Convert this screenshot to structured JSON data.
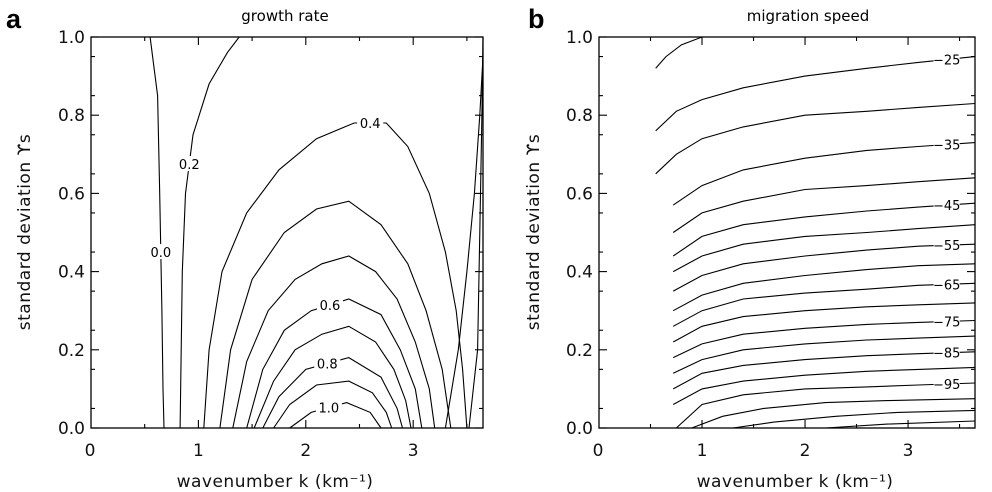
{
  "chart_data": [
    {
      "panel": "a",
      "type": "contour",
      "title": "growth rate",
      "xlabel": "wavenumber k (km⁻¹)",
      "ylabel": "standard deviation ϒs",
      "xlim": [
        0,
        3.65
      ],
      "ylim": [
        0,
        1.0
      ],
      "xticks": [
        0,
        1,
        2,
        3
      ],
      "yticks": [
        0.0,
        0.2,
        0.4,
        0.6,
        0.8,
        1.0
      ],
      "ytick_labels": [
        "0.0",
        "0.2",
        "0.4",
        "0.6",
        "0.8",
        "1.0"
      ],
      "series": [
        {
          "level": 0.0,
          "label": "0.0",
          "x": [
            0.55,
            0.62,
            0.64,
            0.66,
            0.67,
            0.68
          ],
          "y": [
            1.0,
            0.85,
            0.6,
            0.3,
            0.1,
            0.0
          ]
        },
        {
          "level": 0.0,
          "x": [
            3.52,
            3.6,
            3.62,
            3.64,
            3.65
          ],
          "y": [
            0.0,
            0.2,
            0.5,
            0.8,
            1.0
          ]
        },
        {
          "level": 0.2,
          "label": "0.2",
          "x": [
            0.83,
            0.84,
            0.85,
            0.88,
            0.95,
            1.1,
            1.27,
            1.38
          ],
          "y": [
            0.0,
            0.2,
            0.4,
            0.6,
            0.75,
            0.88,
            0.96,
            1.0
          ]
        },
        {
          "level": 0.2,
          "x": [
            3.3,
            3.42,
            3.5,
            3.57,
            3.62,
            3.65
          ],
          "y": [
            0.0,
            0.2,
            0.4,
            0.6,
            0.8,
            0.95
          ]
        },
        {
          "level": 0.4,
          "label": "0.4",
          "x": [
            1.05,
            1.1,
            1.22,
            1.45,
            1.75,
            2.1,
            2.45,
            2.75,
            2.95,
            3.15,
            3.3,
            3.4,
            3.46,
            3.5
          ],
          "y": [
            0.0,
            0.2,
            0.4,
            0.55,
            0.66,
            0.74,
            0.78,
            0.78,
            0.72,
            0.6,
            0.45,
            0.3,
            0.15,
            0.0
          ]
        },
        {
          "level": 0.48,
          "x": [
            1.2,
            1.3,
            1.5,
            1.8,
            2.1,
            2.4,
            2.7,
            2.95,
            3.12,
            3.27,
            3.35
          ],
          "y": [
            0.0,
            0.2,
            0.38,
            0.5,
            0.56,
            0.58,
            0.52,
            0.42,
            0.3,
            0.15,
            0.0
          ]
        },
        {
          "level": 0.56,
          "x": [
            1.32,
            1.45,
            1.65,
            1.9,
            2.15,
            2.4,
            2.65,
            2.85,
            3.02,
            3.15,
            3.2
          ],
          "y": [
            0.0,
            0.17,
            0.3,
            0.38,
            0.42,
            0.44,
            0.4,
            0.33,
            0.22,
            0.1,
            0.0
          ]
        },
        {
          "level": 0.6,
          "label": "0.6",
          "x": [
            1.45,
            1.6,
            1.8,
            2.05,
            2.4,
            2.7,
            2.88,
            3.02,
            3.08
          ],
          "y": [
            0.0,
            0.15,
            0.25,
            0.3,
            0.33,
            0.29,
            0.2,
            0.1,
            0.0
          ]
        },
        {
          "level": 0.7,
          "x": [
            1.52,
            1.7,
            1.9,
            2.15,
            2.4,
            2.65,
            2.82,
            2.93,
            2.98
          ],
          "y": [
            0.0,
            0.12,
            0.2,
            0.24,
            0.26,
            0.22,
            0.15,
            0.07,
            0.0
          ]
        },
        {
          "level": 0.8,
          "label": "0.8",
          "x": [
            1.6,
            1.75,
            2.0,
            2.4,
            2.7,
            2.85,
            2.9
          ],
          "y": [
            0.0,
            0.08,
            0.15,
            0.18,
            0.13,
            0.05,
            0.0
          ]
        },
        {
          "level": 0.9,
          "x": [
            1.7,
            1.85,
            2.1,
            2.4,
            2.62,
            2.75,
            2.8
          ],
          "y": [
            0.0,
            0.06,
            0.11,
            0.12,
            0.09,
            0.04,
            0.0
          ]
        },
        {
          "level": 1.0,
          "label": "1.0",
          "x": [
            1.85,
            2.05,
            2.38,
            2.6,
            2.7
          ],
          "y": [
            0.0,
            0.04,
            0.065,
            0.04,
            0.0
          ]
        }
      ]
    },
    {
      "panel": "b",
      "type": "contour",
      "title": "migration speed",
      "xlabel": "wavenumber k (km⁻¹)",
      "ylabel": "standard deviation ϒs",
      "xlim": [
        0,
        3.65
      ],
      "ylim": [
        0,
        1.0
      ],
      "xticks": [
        0,
        1,
        2,
        3
      ],
      "yticks": [
        0.0,
        0.2,
        0.4,
        0.6,
        0.8,
        1.0
      ],
      "ytick_labels": [
        "0.0",
        "0.2",
        "0.4",
        "0.6",
        "0.8",
        "1.0"
      ],
      "series": [
        {
          "level": -20,
          "x": [
            0.55,
            0.65,
            0.8,
            1.0,
            1.05
          ],
          "y": [
            0.92,
            0.95,
            0.98,
            1.0,
            1.0
          ]
        },
        {
          "level": -25,
          "label": "-25",
          "x": [
            0.55,
            0.75,
            1.0,
            1.4,
            2.0,
            2.6,
            3.1,
            3.65
          ],
          "y": [
            0.76,
            0.81,
            0.84,
            0.87,
            0.9,
            0.92,
            0.935,
            0.95
          ]
        },
        {
          "level": -30,
          "x": [
            0.55,
            0.75,
            1.0,
            1.4,
            2.0,
            2.6,
            3.1,
            3.65
          ],
          "y": [
            0.65,
            0.7,
            0.74,
            0.77,
            0.8,
            0.81,
            0.82,
            0.83
          ]
        },
        {
          "level": -35,
          "label": "-35",
          "x": [
            0.72,
            1.0,
            1.4,
            2.0,
            2.6,
            3.1,
            3.65
          ],
          "y": [
            0.57,
            0.62,
            0.66,
            0.69,
            0.71,
            0.72,
            0.73
          ]
        },
        {
          "level": -40,
          "x": [
            0.72,
            1.0,
            1.4,
            2.0,
            2.6,
            3.1,
            3.65
          ],
          "y": [
            0.5,
            0.55,
            0.58,
            0.61,
            0.62,
            0.63,
            0.64
          ]
        },
        {
          "level": -45,
          "label": "-45",
          "x": [
            0.72,
            1.0,
            1.4,
            2.0,
            2.6,
            3.1,
            3.65
          ],
          "y": [
            0.44,
            0.49,
            0.52,
            0.54,
            0.555,
            0.565,
            0.575
          ]
        },
        {
          "level": -50,
          "x": [
            0.72,
            1.0,
            1.4,
            2.0,
            2.6,
            3.1,
            3.65
          ],
          "y": [
            0.4,
            0.44,
            0.47,
            0.49,
            0.5,
            0.51,
            0.52
          ]
        },
        {
          "level": -55,
          "label": "-55",
          "x": [
            0.72,
            1.0,
            1.4,
            2.0,
            2.6,
            3.1,
            3.65
          ],
          "y": [
            0.35,
            0.39,
            0.42,
            0.44,
            0.455,
            0.465,
            0.47
          ]
        },
        {
          "level": -60,
          "x": [
            0.72,
            1.0,
            1.4,
            2.0,
            2.6,
            3.1,
            3.65
          ],
          "y": [
            0.3,
            0.34,
            0.37,
            0.39,
            0.405,
            0.415,
            0.42
          ]
        },
        {
          "level": -65,
          "label": "-65",
          "x": [
            0.72,
            1.0,
            1.4,
            2.0,
            2.6,
            3.1,
            3.65
          ],
          "y": [
            0.26,
            0.3,
            0.33,
            0.345,
            0.355,
            0.365,
            0.37
          ]
        },
        {
          "level": -70,
          "x": [
            0.72,
            1.0,
            1.4,
            2.0,
            2.6,
            3.1,
            3.65
          ],
          "y": [
            0.22,
            0.26,
            0.285,
            0.3,
            0.31,
            0.315,
            0.32
          ]
        },
        {
          "level": -75,
          "label": "-75",
          "x": [
            0.72,
            1.0,
            1.4,
            2.0,
            2.6,
            3.1,
            3.65
          ],
          "y": [
            0.18,
            0.215,
            0.24,
            0.255,
            0.265,
            0.27,
            0.275
          ]
        },
        {
          "level": -80,
          "x": [
            0.72,
            1.0,
            1.4,
            2.0,
            2.6,
            3.1,
            3.65
          ],
          "y": [
            0.14,
            0.175,
            0.2,
            0.215,
            0.225,
            0.23,
            0.235
          ]
        },
        {
          "level": -85,
          "label": "-85",
          "x": [
            0.72,
            1.0,
            1.4,
            2.0,
            2.6,
            3.1,
            3.65
          ],
          "y": [
            0.1,
            0.14,
            0.16,
            0.175,
            0.185,
            0.19,
            0.195
          ]
        },
        {
          "level": -90,
          "x": [
            0.72,
            1.0,
            1.4,
            2.0,
            2.6,
            3.1,
            3.65
          ],
          "y": [
            0.06,
            0.1,
            0.12,
            0.135,
            0.145,
            0.15,
            0.155
          ]
        },
        {
          "level": -95,
          "label": "-95",
          "x": [
            0.75,
            1.0,
            1.4,
            2.0,
            2.6,
            3.1,
            3.65
          ],
          "y": [
            0.0,
            0.06,
            0.085,
            0.1,
            0.105,
            0.11,
            0.115
          ]
        },
        {
          "level": -100,
          "x": [
            0.9,
            1.2,
            1.6,
            2.2,
            2.8,
            3.65
          ],
          "y": [
            0.0,
            0.03,
            0.05,
            0.065,
            0.07,
            0.075
          ]
        },
        {
          "level": -105,
          "x": [
            1.3,
            1.7,
            2.3,
            2.9,
            3.65
          ],
          "y": [
            0.0,
            0.015,
            0.03,
            0.04,
            0.045
          ]
        },
        {
          "level": -110,
          "x": [
            2.2,
            2.8,
            3.65
          ],
          "y": [
            0.0,
            0.01,
            0.018
          ]
        }
      ]
    }
  ],
  "panels": [
    {
      "letter": "a",
      "title": "growth rate",
      "xlabel": "wavenumber k (km⁻¹)",
      "ylabel": "standard deviation ϒs"
    },
    {
      "letter": "b",
      "title": "migration speed",
      "xlabel": "wavenumber k (km⁻¹)",
      "ylabel": "standard deviation ϒs"
    }
  ]
}
